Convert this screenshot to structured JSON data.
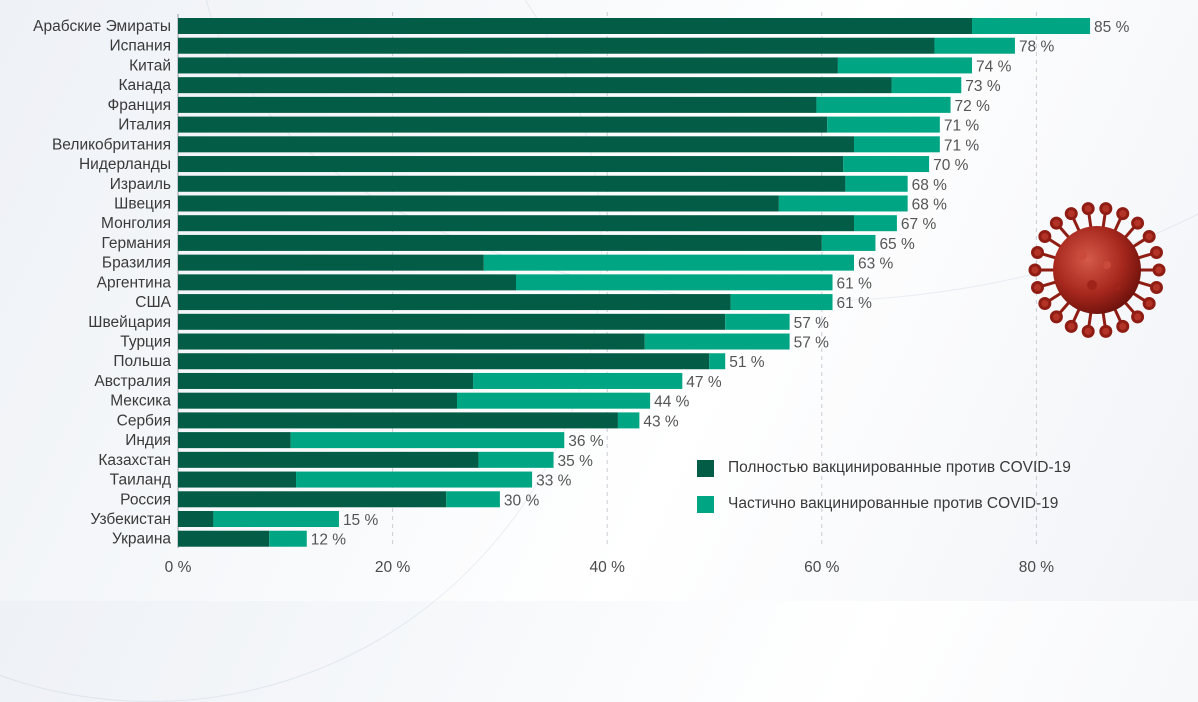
{
  "chart_data": {
    "type": "bar",
    "orientation": "horizontal",
    "stacked": true,
    "categories": [
      "Арабские Эмираты",
      "Испания",
      "Китай",
      "Канада",
      "Франция",
      "Италия",
      "Великобритания",
      "Нидерланды",
      "Израиль",
      "Швеция",
      "Монголия",
      "Германия",
      "Бразилия",
      "Аргентина",
      "США",
      "Швейцария",
      "Турция",
      "Польша",
      "Австралия",
      "Мексика",
      "Сербия",
      "Индия",
      "Казахстан",
      "Таиланд",
      "Россия",
      "Узбекистан",
      "Украина"
    ],
    "series": [
      {
        "name": "Полностью вакцинированные против COVID-19",
        "color": "#035c45",
        "values": [
          74,
          70.5,
          61.5,
          66.5,
          59.5,
          60.5,
          63,
          62,
          62.2,
          56,
          63,
          60,
          28.5,
          31.5,
          51.5,
          51,
          43.5,
          49.5,
          27.5,
          26,
          41,
          10.5,
          28,
          11,
          25,
          3.3,
          8.5
        ]
      },
      {
        "name": "Частично вакцинированные против COVID-19",
        "color": "#00a683",
        "values": [
          11,
          7.5,
          12.5,
          6.5,
          12.5,
          10.5,
          8,
          8,
          5.8,
          12,
          4,
          5,
          34.5,
          29.5,
          9.5,
          6,
          13.5,
          1.5,
          19.5,
          18,
          2,
          25.5,
          7,
          22,
          5,
          11.7,
          3.5
        ]
      }
    ],
    "totals": [
      85,
      78,
      74,
      73,
      72,
      71,
      71,
      70,
      68,
      68,
      67,
      65,
      63,
      61,
      61,
      57,
      57,
      51,
      47,
      44,
      43,
      36,
      35,
      33,
      30,
      15,
      12
    ],
    "total_labels": [
      "85 %",
      "78 %",
      "74 %",
      "73 %",
      "72 %",
      "71 %",
      "71 %",
      "70 %",
      "68 %",
      "68 %",
      "67 %",
      "65 %",
      "63 %",
      "61 %",
      "61 %",
      "57 %",
      "57 %",
      "51 %",
      "47 %",
      "44 %",
      "43 %",
      "36 %",
      "35 %",
      "33 %",
      "30 %",
      "15 %",
      "12 %"
    ],
    "xticks": [
      0,
      20,
      40,
      60,
      80
    ],
    "xtick_labels": [
      "0 %",
      "20 %",
      "40 %",
      "60 %",
      "80 %"
    ],
    "xlim": [
      0,
      88
    ],
    "grid": true,
    "legend_position": "bottom-right"
  },
  "legend": {
    "full": "Полностью вакцинированные против COVID-19",
    "partial": "Частично вакцинированные против COVID-19"
  },
  "colors": {
    "full": "#035c45",
    "partial": "#00a683",
    "grid": "#c9ced6"
  },
  "decor": {
    "virus_icon": "coronavirus-icon"
  }
}
